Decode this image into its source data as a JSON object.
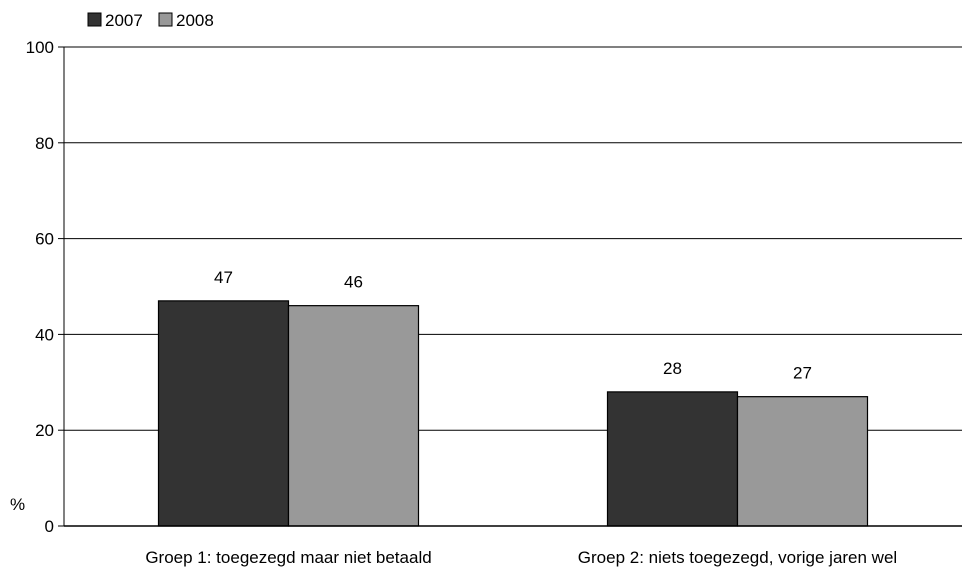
{
  "chart_data": {
    "type": "bar",
    "categories": [
      "Groep 1: toegezegd maar niet betaald",
      "Groep 2: niets toegezegd, vorige jaren wel"
    ],
    "series": [
      {
        "name": "2007",
        "values": [
          47,
          28
        ],
        "color": "#333333"
      },
      {
        "name": "2008",
        "values": [
          46,
          27
        ],
        "color": "#999999"
      }
    ],
    "ylim": [
      0,
      100
    ],
    "yticks": [
      0,
      20,
      40,
      60,
      80,
      100
    ],
    "ylabel": "%",
    "grid": true,
    "legend_position": "top-left"
  }
}
